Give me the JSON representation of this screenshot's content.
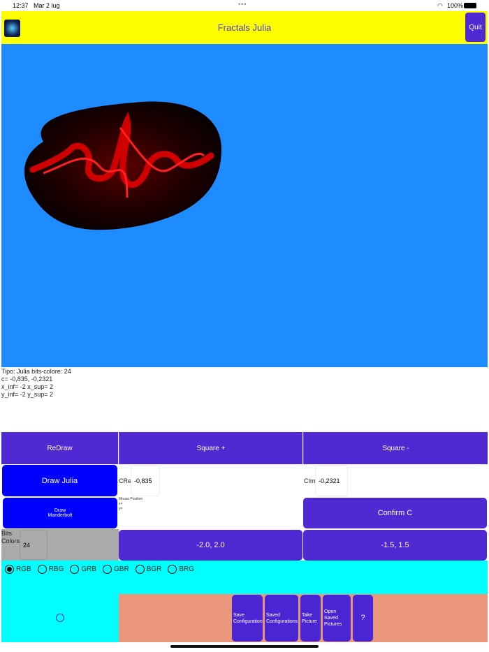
{
  "status": {
    "time": "12:37",
    "date": "Mar 2 lug",
    "battery": "100%"
  },
  "header": {
    "title": "Fractals Julia",
    "quit": "Quit"
  },
  "info": {
    "line1": "Tipo: Julia   bits-colore: 24",
    "line2": "c= -0,835, -0,2321",
    "line3": "x_inf= -2 x_sup= 2",
    "line4": "y_inf= -2 y_sup= 2"
  },
  "buttons": {
    "redraw": "ReDraw",
    "square_plus": "Square +",
    "square_minus": "Square -",
    "draw_julia": "Draw Julia",
    "draw_mandel_1": "Draw",
    "draw_mandel_2": "Manderbolt",
    "confirm": "Confirm C",
    "range1": "-2.0, 2.0",
    "range2": "-1.5, 1.5"
  },
  "cre": {
    "label": "CRe:",
    "value": "-0,835"
  },
  "cim": {
    "label": "CIm:",
    "value": "-0,2321"
  },
  "mouse": {
    "label": "Mouse Position",
    "x": "x=",
    "y": "y="
  },
  "bits": {
    "label1": "Bits",
    "label2": "Colors",
    "value": "24"
  },
  "radios": [
    {
      "label": "RGB",
      "selected": true
    },
    {
      "label": "RBG"
    },
    {
      "label": "GRB"
    },
    {
      "label": "GBR"
    },
    {
      "label": "BGR"
    },
    {
      "label": "BRG"
    }
  ],
  "bottom": {
    "save1": "Save",
    "save2": "Configuration",
    "saved1": "Saved",
    "saved2": "Configurations",
    "take1": "Take",
    "take2": "Picture",
    "open1": "Open Saved",
    "open2": "Pictures",
    "help": "?"
  }
}
